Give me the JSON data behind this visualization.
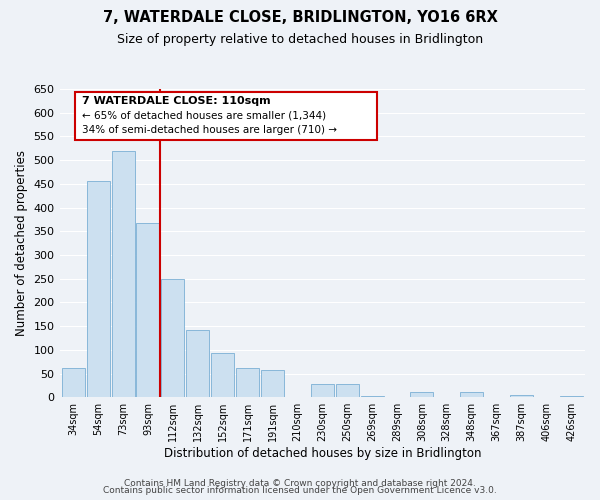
{
  "title": "7, WATERDALE CLOSE, BRIDLINGTON, YO16 6RX",
  "subtitle": "Size of property relative to detached houses in Bridlington",
  "xlabel": "Distribution of detached houses by size in Bridlington",
  "ylabel": "Number of detached properties",
  "bar_color": "#cce0f0",
  "bar_edge_color": "#7bafd4",
  "categories": [
    "34sqm",
    "54sqm",
    "73sqm",
    "93sqm",
    "112sqm",
    "132sqm",
    "152sqm",
    "171sqm",
    "191sqm",
    "210sqm",
    "230sqm",
    "250sqm",
    "269sqm",
    "289sqm",
    "308sqm",
    "328sqm",
    "348sqm",
    "367sqm",
    "387sqm",
    "406sqm",
    "426sqm"
  ],
  "values": [
    62,
    455,
    520,
    368,
    250,
    142,
    93,
    62,
    57,
    0,
    28,
    28,
    3,
    0,
    12,
    0,
    10,
    0,
    5,
    0,
    3
  ],
  "ylim": [
    0,
    650
  ],
  "yticks": [
    0,
    50,
    100,
    150,
    200,
    250,
    300,
    350,
    400,
    450,
    500,
    550,
    600,
    650
  ],
  "vline_x_idx": 3.5,
  "vline_color": "#cc0000",
  "annotation_title": "7 WATERDALE CLOSE: 110sqm",
  "annotation_line1": "← 65% of detached houses are smaller (1,344)",
  "annotation_line2": "34% of semi-detached houses are larger (710) →",
  "footer_line1": "Contains HM Land Registry data © Crown copyright and database right 2024.",
  "footer_line2": "Contains public sector information licensed under the Open Government Licence v3.0.",
  "background_color": "#eef2f7",
  "plot_bg_color": "#eef2f7",
  "grid_color": "#ffffff",
  "title_fontsize": 10.5,
  "subtitle_fontsize": 9,
  "footer_fontsize": 6.5
}
